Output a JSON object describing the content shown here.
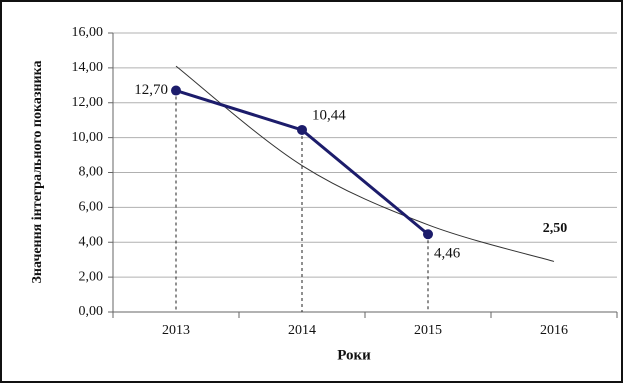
{
  "chart_data": {
    "type": "line",
    "x_label": "Роки",
    "y_label": "Значення інтегрального показника",
    "categories": [
      "2013",
      "2014",
      "2015",
      "2016"
    ],
    "series": [
      {
        "color": "#1c1c6b",
        "values": [
          12.7,
          10.44,
          4.46,
          null
        ],
        "value_labels": [
          "12,70",
          "10,44",
          "4,46",
          null
        ]
      },
      {
        "color": "#333333",
        "values": [
          14.1,
          8.4,
          5.0,
          2.9
        ]
      }
    ],
    "annotation": "2,50",
    "ylim": [
      0,
      16
    ],
    "yticks": [
      {
        "value": 0,
        "label": "0,00"
      },
      {
        "value": 2,
        "label": "2,00"
      },
      {
        "value": 4,
        "label": "4,00"
      },
      {
        "value": 6,
        "label": "6,00"
      },
      {
        "value": 8,
        "label": "8,00"
      },
      {
        "value": 10,
        "label": "10,00"
      },
      {
        "value": 12,
        "label": "12,00"
      },
      {
        "value": 14,
        "label": "14,00"
      },
      {
        "value": 16,
        "label": "16,00"
      }
    ],
    "grid": true
  }
}
